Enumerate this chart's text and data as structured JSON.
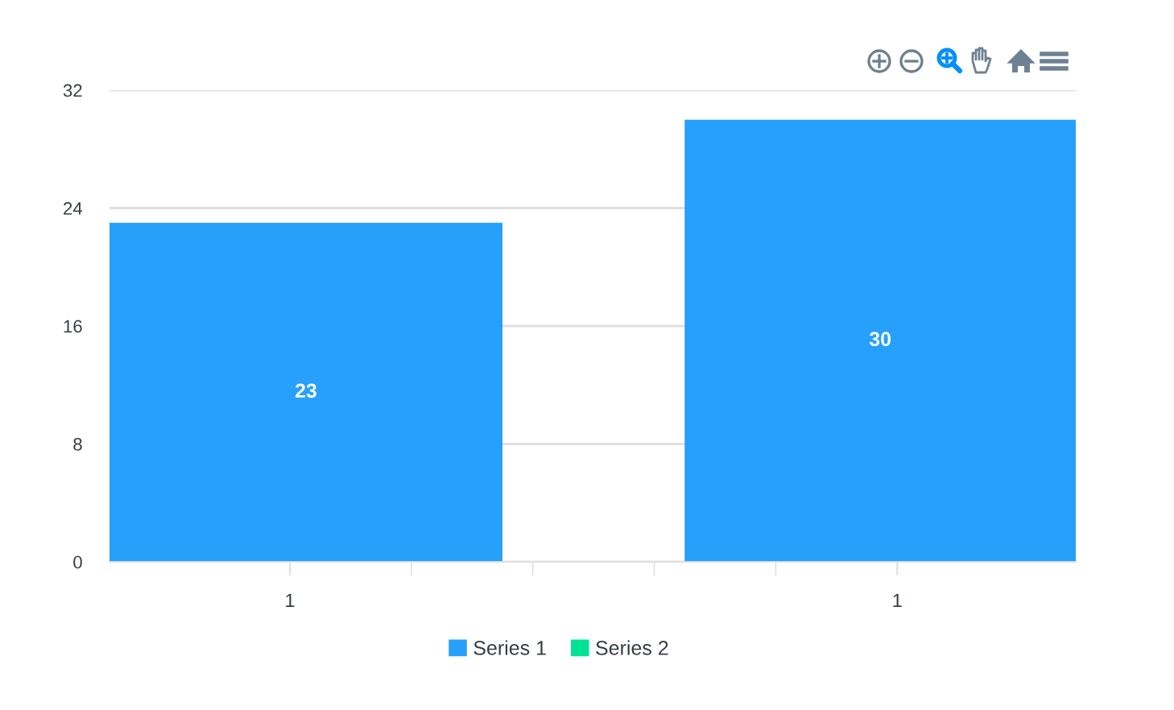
{
  "chart_data": {
    "type": "bar",
    "categories": [
      "1",
      "1"
    ],
    "series": [
      {
        "name": "Series 1",
        "color": "#26a0fb",
        "values": [
          23,
          30
        ]
      },
      {
        "name": "Series 2",
        "color": "#00e396",
        "values": [
          null,
          null
        ]
      }
    ],
    "ylim": [
      0,
      32
    ],
    "yticks": [
      0,
      8,
      16,
      24,
      32
    ],
    "grid": "y",
    "legend": "bottom",
    "data_labels": true
  }
}
